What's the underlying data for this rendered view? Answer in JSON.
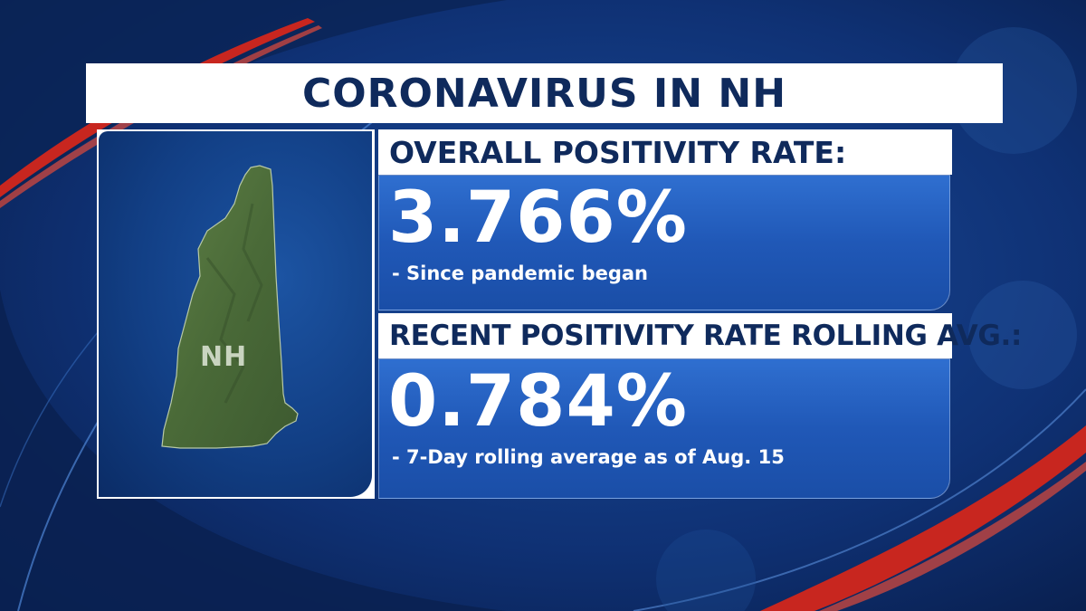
{
  "title": "CORONAVIRUS IN NH",
  "map": {
    "state_label": "NH",
    "state_icon": "new-hampshire-map-icon"
  },
  "overall": {
    "label": "OVERALL POSITIVITY RATE:",
    "value": "3.766%",
    "note": "- Since pandemic began"
  },
  "recent": {
    "label": "RECENT POSITIVITY RATE ROLLING AVG.:",
    "value": "0.784%",
    "note": "- 7-Day rolling average as of Aug. 15"
  },
  "colors": {
    "navy_text": "#0f2a5c",
    "panel_blue": "#2058b7",
    "accent_red": "#c8261f",
    "map_green": "#4e6e3c"
  }
}
